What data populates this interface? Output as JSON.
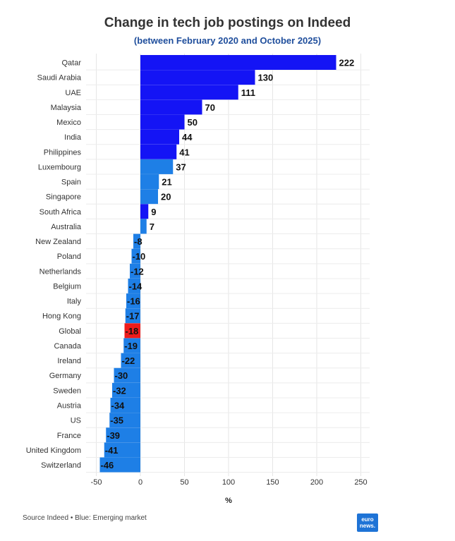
{
  "chart_data": {
    "type": "bar",
    "orientation": "horizontal",
    "title": "Change in tech job postings on Indeed",
    "subtitle": "(between February 2020 and October 2025)",
    "xlabel": "%",
    "ylabel": "",
    "xlim": [
      -50,
      260
    ],
    "xticks": [
      -50,
      0,
      50,
      100,
      150,
      200,
      250
    ],
    "grid": true,
    "categories": [
      "Qatar",
      "Saudi Arabia",
      "UAE",
      "Malaysia",
      "Mexico",
      "India",
      "Philippines",
      "Luxembourg",
      "Spain",
      "Singapore",
      "South Africa",
      "Australia",
      "New Zealand",
      "Poland",
      "Netherlands",
      "Belgium",
      "Italy",
      "Hong Kong",
      "Global",
      "Canada",
      "Ireland",
      "Germany",
      "Sweden",
      "Austria",
      "US",
      "France",
      "United Kingdom",
      "Switzerland"
    ],
    "values": [
      222,
      130,
      111,
      70,
      50,
      44,
      41,
      37,
      21,
      20,
      9,
      7,
      -8,
      -10,
      -12,
      -14,
      -16,
      -17,
      -18,
      -19,
      -22,
      -30,
      -32,
      -34,
      -35,
      -39,
      -41,
      -46
    ],
    "groups": [
      "gulf",
      "gulf",
      "gulf",
      "gulf",
      "gulf",
      "gulf",
      "gulf",
      "other",
      "other",
      "other",
      "gulf",
      "other",
      "other",
      "other",
      "other",
      "other",
      "other",
      "other",
      "global",
      "other",
      "other",
      "other",
      "other",
      "other",
      "other",
      "other",
      "other",
      "other"
    ],
    "colors": {
      "gulf": "#1414f5",
      "other": "#1e7fe6",
      "global": "#ee1c1c"
    }
  },
  "footer": {
    "source": "Source Indeed • Blue: Emerging market",
    "logo_line1": "euro",
    "logo_line2": "news."
  }
}
